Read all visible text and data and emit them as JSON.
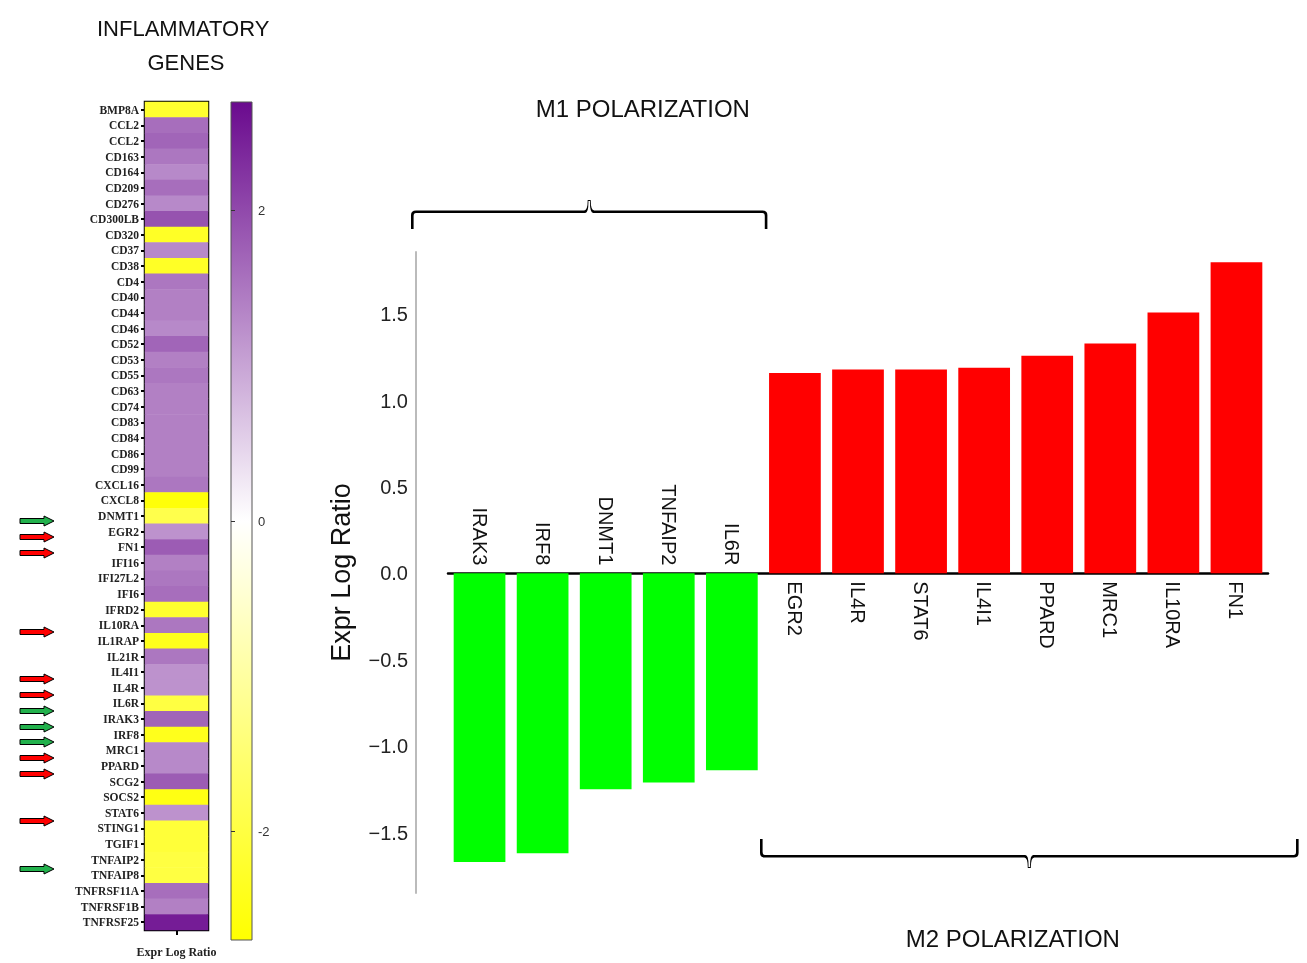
{
  "chart_data": [
    {
      "type": "heatmap",
      "title": "INFLAMMATORY GENES",
      "xlabel": "Expr Log Ratio",
      "categories": [
        null
      ],
      "y_categories": [
        "BMP8A",
        "CCL2",
        "CCL2",
        "CD163",
        "CD164",
        "CD209",
        "CD276",
        "CD300LB",
        "CD320",
        "CD37",
        "CD38",
        "CD4",
        "CD40",
        "CD44",
        "CD46",
        "CD52",
        "CD53",
        "CD55",
        "CD63",
        "CD74",
        "CD83",
        "CD84",
        "CD86",
        "CD99",
        "CXCL16",
        "CXCL8",
        "DNMT1",
        "EGR2",
        "FN1",
        "IFI16",
        "IFI27L2",
        "IFI6",
        "IFRD2",
        "IL10RA",
        "IL1RAP",
        "IL21R",
        "IL4I1",
        "IL4R",
        "IL6R",
        "IRAK3",
        "IRF8",
        "MRC1",
        "PPARD",
        "SCG2",
        "SOCS2",
        "STAT6",
        "STING1",
        "TGIF1",
        "TNFAIP2",
        "TNFAIP8",
        "TNFRSF11A",
        "TNFRSF1B",
        "TNFRSF25"
      ],
      "cells": [
        [
          -2.2
        ],
        [
          1.6
        ],
        [
          1.7
        ],
        [
          1.5
        ],
        [
          1.3
        ],
        [
          1.6
        ],
        [
          1.3
        ],
        [
          1.9
        ],
        [
          -2.3
        ],
        [
          1.3
        ],
        [
          -2.3
        ],
        [
          1.5
        ],
        [
          1.4
        ],
        [
          1.4
        ],
        [
          1.3
        ],
        [
          1.7
        ],
        [
          1.4
        ],
        [
          1.5
        ],
        [
          1.4
        ],
        [
          1.4
        ],
        [
          1.4
        ],
        [
          1.4
        ],
        [
          1.4
        ],
        [
          1.4
        ],
        [
          1.5
        ],
        [
          -2.6
        ],
        [
          -1.9
        ],
        [
          1.2
        ],
        [
          1.8
        ],
        [
          1.4
        ],
        [
          1.5
        ],
        [
          1.6
        ],
        [
          -2.2
        ],
        [
          1.5
        ],
        [
          -2.4
        ],
        [
          1.5
        ],
        [
          1.2
        ],
        [
          1.2
        ],
        [
          -2.0
        ],
        [
          1.7
        ],
        [
          -2.4
        ],
        [
          1.3
        ],
        [
          1.3
        ],
        [
          1.8
        ],
        [
          -2.5
        ],
        [
          1.2
        ],
        [
          -2.1
        ],
        [
          -2.1
        ],
        [
          -2.0
        ],
        [
          -2.0
        ],
        [
          1.6
        ],
        [
          1.4
        ],
        [
          2.5
        ]
      ],
      "clim": [
        -2.7,
        2.7
      ],
      "cticks": [
        -2,
        0,
        2
      ]
    },
    {
      "type": "bar",
      "ylabel": "Expr Log Ratio",
      "categories": [
        "IRAK3",
        "IRF8",
        "DNMT1",
        "TNFAIP2",
        "IL6R",
        "EGR2",
        "IL4R",
        "STAT6",
        "IL4I1",
        "PPARD",
        "MRC1",
        "IL10RA",
        "FN1"
      ],
      "values": [
        -1.67,
        -1.62,
        -1.25,
        -1.21,
        -1.14,
        1.16,
        1.18,
        1.18,
        1.19,
        1.26,
        1.33,
        1.51,
        1.8
      ],
      "colors": [
        "#00ff00",
        "#00ff00",
        "#00ff00",
        "#00ff00",
        "#00ff00",
        "#ff0000",
        "#ff0000",
        "#ff0000",
        "#ff0000",
        "#ff0000",
        "#ff0000",
        "#ff0000",
        "#ff0000"
      ],
      "ylim": [
        -1.85,
        1.86
      ],
      "yticks": [
        {
          "value": -1.5,
          "label": "−1.5"
        },
        {
          "value": -1,
          "label": "−1.0"
        },
        {
          "value": -0.5,
          "label": "−0.5"
        },
        {
          "value": 0,
          "label": "0.0"
        },
        0.5,
        {
          "value": 1,
          "label": "1.0"
        },
        1.5
      ],
      "annotations": [
        "M1 POLARIZATION",
        "M2 POLARIZATION"
      ]
    }
  ]
}
